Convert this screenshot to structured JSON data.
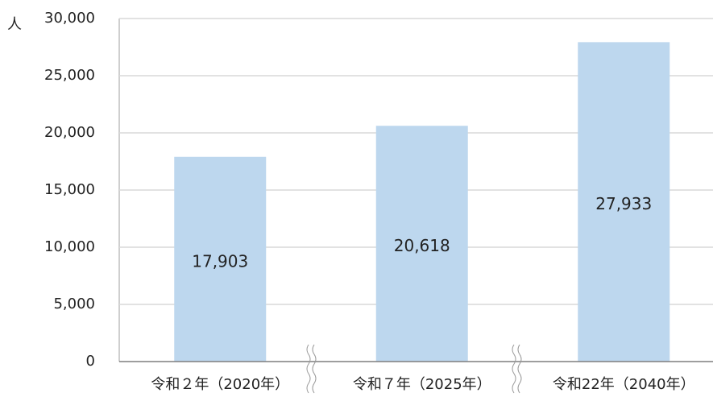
{
  "chart_data": {
    "type": "bar",
    "ylabel": "人",
    "categories": [
      "令和２年（2020年）",
      "令和７年（2025年）",
      "令和22年（2040年）"
    ],
    "values": [
      17903,
      20618,
      27933
    ],
    "value_labels": [
      "17,903",
      "20,618",
      "27,933"
    ],
    "color": "#bdd7ee",
    "ylim": [
      0,
      30000
    ],
    "yticks": [
      0,
      {
        "value": 5000,
        "label": "5,000"
      },
      {
        "value": 10000,
        "label": "10,000"
      },
      {
        "value": 15000,
        "label": "15,000"
      },
      {
        "value": 20000,
        "label": "20,000"
      },
      {
        "value": 25000,
        "label": "25,000"
      },
      {
        "value": 30000,
        "label": "30,000"
      }
    ],
    "grid": true
  }
}
